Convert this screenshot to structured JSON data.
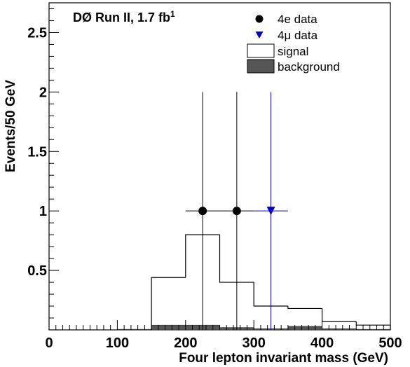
{
  "chart_data": {
    "type": "bar",
    "title": "DØ Run II, 1.7 fb",
    "title_superscript": "1",
    "xlabel": "Four lepton invariant mass (GeV)",
    "ylabel": "Events/50 GeV",
    "xlim": [
      0,
      500
    ],
    "ylim": [
      0,
      2.75
    ],
    "x_ticks": [
      0,
      100,
      200,
      300,
      400,
      500
    ],
    "x_tick_labels": [
      "0",
      "100",
      "200",
      "300",
      "400",
      "500"
    ],
    "y_ticks": [
      0.5,
      1,
      1.5,
      2,
      2.5
    ],
    "y_tick_labels": [
      "0.5",
      "1",
      "1.5",
      "2",
      "2.5"
    ],
    "grid": false,
    "legend_position": "top-right",
    "bin_edges": [
      0,
      50,
      100,
      150,
      200,
      250,
      300,
      350,
      400,
      450,
      500
    ],
    "series": [
      {
        "name": "signal",
        "style": "histogram-outline",
        "color": "#000000",
        "values": [
          0.0,
          0.0,
          0.0,
          0.44,
          0.8,
          0.4,
          0.2,
          0.18,
          0.07,
          0.04
        ]
      },
      {
        "name": "background",
        "style": "histogram-filled",
        "color": "#555555",
        "values": [
          0.0,
          0.0,
          0.005,
          0.04,
          0.04,
          0.02,
          0.01,
          0.03,
          0.01,
          0.005
        ]
      },
      {
        "name": "4e data",
        "style": "points-circle",
        "color": "#000000",
        "points": [
          {
            "x": 225,
            "y": 1,
            "xerr": 25,
            "yerr_low": 1,
            "yerr_high": 1.0
          },
          {
            "x": 275,
            "y": 1,
            "xerr": 25,
            "yerr_low": 1,
            "yerr_high": 1.0
          }
        ]
      },
      {
        "name": "4μ data",
        "style": "points-triangle-down",
        "color": "#0000cc",
        "points": [
          {
            "x": 325,
            "y": 1,
            "xerr": 25,
            "yerr_low": 1,
            "yerr_high": 1.0
          }
        ]
      }
    ],
    "legend": [
      "4e data",
      "4μ data",
      "signal",
      "background"
    ]
  }
}
